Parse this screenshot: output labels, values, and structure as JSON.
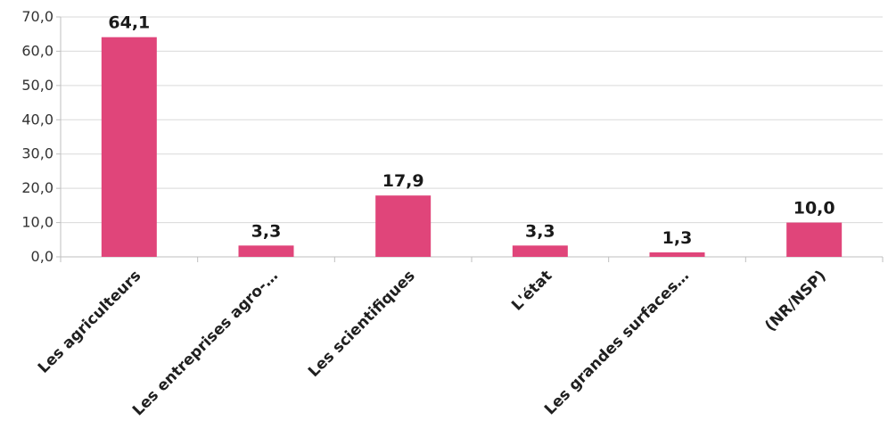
{
  "chart_data": {
    "type": "bar",
    "categories": [
      "Les agriculteurs",
      "Les entreprises agro-…",
      "Les scientifiques",
      "L'état",
      "Les grandes surfaces…",
      "(NR/NSP)"
    ],
    "values": [
      64.1,
      3.3,
      17.9,
      3.3,
      1.3,
      10.0
    ],
    "data_labels": [
      "64,1",
      "3,3",
      "17,9",
      "3,3",
      "1,3",
      "10,0"
    ],
    "y_ticks": [
      0,
      10,
      20,
      30,
      40,
      50,
      60,
      70
    ],
    "y_tick_labels": [
      "0,0",
      "10,0",
      "20,0",
      "30,0",
      "40,0",
      "50,0",
      "60,0",
      "70,0"
    ],
    "ylim": [
      0,
      70
    ],
    "grid": true,
    "bar_color": "#e0457a",
    "title": "",
    "xlabel": "",
    "ylabel": ""
  }
}
